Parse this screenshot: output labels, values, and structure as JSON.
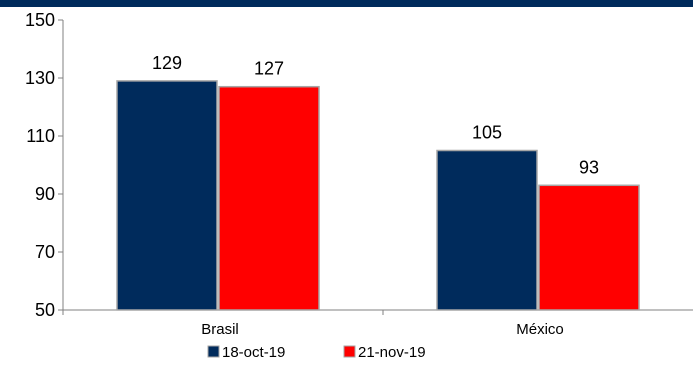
{
  "chart_data": {
    "type": "bar",
    "categories": [
      "Brasil",
      "México"
    ],
    "series": [
      {
        "name": "18-oct-19",
        "values": [
          129,
          105
        ],
        "color": "#002B5C"
      },
      {
        "name": "21-nov-19",
        "values": [
          127,
          93
        ],
        "color": "#FF0000"
      }
    ],
    "ylim": [
      50,
      150
    ],
    "yticks": [
      "50",
      "70",
      "90",
      "110",
      "130",
      "150"
    ],
    "data_labels": [
      [
        "129",
        "105"
      ],
      [
        "127",
        "93"
      ]
    ],
    "title": "",
    "xlabel": "",
    "ylabel": "",
    "grid": false,
    "legend_position": "bottom"
  },
  "colors": {
    "top_band": "#002B5C",
    "axis": "#808080"
  }
}
